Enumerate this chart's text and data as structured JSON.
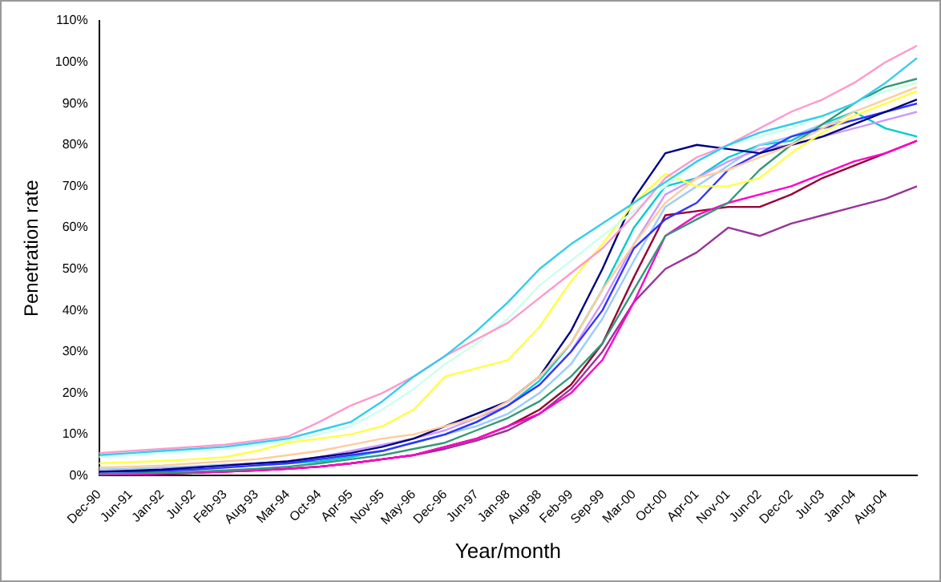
{
  "chart_data": {
    "type": "line",
    "xlabel": "Year/month",
    "ylabel": "Penetration rate",
    "categories": [
      "Dec-90",
      "Jun-91",
      "Jan-92",
      "Jul-92",
      "Feb-93",
      "Aug-93",
      "Mar-94",
      "Oct-94",
      "Apr-95",
      "Nov-95",
      "May-96",
      "Dec-96",
      "Jun-97",
      "Jan-98",
      "Aug-98",
      "Feb-99",
      "Sep-99",
      "Mar-00",
      "Oct-00",
      "Apr-01",
      "Nov-01",
      "Jun-02",
      "Dec-02",
      "Jul-03",
      "Jan-04",
      "Aug-04",
      null
    ],
    "ylim": [
      0,
      110
    ],
    "yticks": [
      {
        "value": 0,
        "label": "0%"
      },
      {
        "value": 10,
        "label": "10%"
      },
      {
        "value": 20,
        "label": "20%"
      },
      {
        "value": 30,
        "label": "30%"
      },
      {
        "value": 40,
        "label": "40%"
      },
      {
        "value": 50,
        "label": "50%"
      },
      {
        "value": 60,
        "label": "60%"
      },
      {
        "value": 70,
        "label": "70%"
      },
      {
        "value": 80,
        "label": "80%"
      },
      {
        "value": 90,
        "label": "90%"
      },
      {
        "value": 100,
        "label": "100%"
      },
      {
        "value": 110,
        "label": "110%"
      }
    ],
    "grid": false,
    "legend": false,
    "marker": "none",
    "line_style": "solid",
    "series": [
      {
        "color": "#33ccee",
        "values": [
          5,
          5.5,
          6,
          6.5,
          7,
          8,
          9,
          11,
          13,
          18,
          24,
          29,
          35,
          42,
          50,
          56,
          61,
          66,
          71,
          76,
          80,
          83,
          85,
          87,
          90,
          95,
          101
        ]
      },
      {
        "color": "#ff99cc",
        "values": [
          5.5,
          6,
          6.5,
          7,
          7.5,
          8.5,
          9.5,
          13,
          17,
          20,
          24,
          29,
          33,
          37,
          43,
          49,
          55,
          63,
          72,
          77,
          80,
          84,
          88,
          91,
          95,
          100,
          104
        ]
      },
      {
        "color": "#ccffee",
        "values": [
          4.5,
          5,
          5.5,
          6,
          6.5,
          7.5,
          8.5,
          10,
          12,
          16,
          21,
          27,
          32,
          38,
          46,
          52,
          58,
          64,
          70,
          76,
          80,
          82,
          84,
          87,
          90,
          93,
          95
        ]
      },
      {
        "color": "#ffff44",
        "values": [
          3,
          3.3,
          3.6,
          4,
          4.5,
          6,
          8,
          9,
          10,
          12,
          16,
          24,
          26,
          28,
          36,
          47,
          56,
          66,
          73,
          70,
          70,
          72,
          78,
          83,
          87,
          90,
          93
        ]
      },
      {
        "color": "#ffcc99",
        "values": [
          2,
          2.2,
          2.5,
          3,
          3.5,
          4,
          5,
          6,
          7.5,
          9,
          10,
          12,
          14,
          18,
          24,
          32,
          45,
          56,
          66,
          72,
          74,
          77,
          80,
          84,
          88,
          91,
          94
        ]
      },
      {
        "color": "#000080",
        "values": [
          1,
          1.2,
          1.5,
          2,
          2.5,
          3,
          3.5,
          4.5,
          5.5,
          7,
          9,
          12,
          15,
          18,
          24,
          35,
          50,
          67,
          78,
          80,
          79,
          78,
          80,
          82,
          85,
          88,
          91
        ]
      },
      {
        "color": "#3333ff",
        "values": [
          1,
          1,
          1.2,
          1.5,
          2,
          2.5,
          3,
          4,
          5,
          6,
          8,
          10,
          13,
          17,
          22,
          30,
          40,
          55,
          62,
          66,
          74,
          78,
          82,
          84,
          86,
          88,
          90
        ]
      },
      {
        "color": "#339977",
        "values": [
          0.5,
          0.6,
          0.8,
          1,
          1.3,
          1.7,
          2.2,
          3,
          4,
          5,
          6.5,
          8,
          11,
          14,
          18,
          24,
          32,
          45,
          58,
          62,
          66,
          74,
          80,
          85,
          90,
          94,
          96
        ]
      },
      {
        "color": "#ff00cc",
        "values": [
          0.3,
          0.4,
          0.5,
          0.7,
          1,
          1.3,
          1.7,
          2.2,
          3,
          4,
          5,
          7,
          9,
          12,
          15,
          20,
          28,
          42,
          58,
          63,
          66,
          68,
          70,
          73,
          76,
          78,
          81
        ]
      },
      {
        "color": "#990033",
        "values": [
          0.3,
          0.4,
          0.5,
          0.7,
          1,
          1.3,
          1.7,
          2.2,
          3,
          4,
          5,
          7,
          9,
          12,
          16,
          22,
          32,
          48,
          63,
          64,
          65,
          65,
          68,
          72,
          75,
          78,
          81
        ]
      },
      {
        "color": "#993399",
        "values": [
          0.3,
          0.4,
          0.5,
          0.7,
          1,
          1.3,
          1.7,
          2.2,
          3,
          4,
          5,
          6.5,
          8.5,
          11,
          15,
          21,
          30,
          42,
          50,
          54,
          60,
          58,
          61,
          63,
          65,
          67,
          70
        ]
      },
      {
        "color": "#cc99ff",
        "values": [
          1,
          1.2,
          1.5,
          2,
          2.5,
          3,
          3.5,
          4.5,
          6,
          7.5,
          9,
          11,
          14,
          17,
          22,
          30,
          42,
          56,
          68,
          72,
          76,
          79,
          80,
          82,
          84,
          86,
          88
        ]
      },
      {
        "color": "#99ccff",
        "values": [
          1.5,
          1.7,
          2,
          2.3,
          2.7,
          3,
          3.5,
          4,
          5,
          6,
          8,
          10,
          12,
          15,
          20,
          27,
          38,
          52,
          65,
          70,
          75,
          80,
          82,
          85,
          86,
          88,
          90
        ]
      },
      {
        "color": "#00cccc",
        "values": [
          null,
          null,
          null,
          null,
          null,
          2.5,
          3,
          3.5,
          4.5,
          6,
          8,
          10,
          13,
          17,
          23,
          32,
          45,
          60,
          70,
          72,
          77,
          80,
          81,
          85,
          88,
          84,
          82
        ]
      }
    ]
  }
}
